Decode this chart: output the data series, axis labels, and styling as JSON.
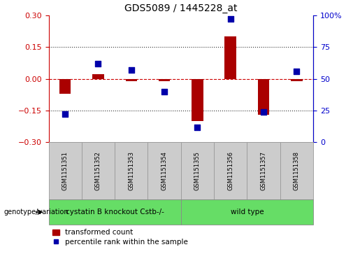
{
  "title": "GDS5089 / 1445228_at",
  "samples": [
    "GSM1151351",
    "GSM1151352",
    "GSM1151353",
    "GSM1151354",
    "GSM1151355",
    "GSM1151356",
    "GSM1151357",
    "GSM1151358"
  ],
  "transformed_count": [
    -0.07,
    0.02,
    -0.01,
    -0.01,
    -0.2,
    0.2,
    -0.17,
    -0.01
  ],
  "percentile_rank": [
    22,
    62,
    57,
    40,
    12,
    97,
    24,
    56
  ],
  "ylim_left": [
    -0.3,
    0.3
  ],
  "ylim_right": [
    0,
    100
  ],
  "yticks_left": [
    -0.3,
    -0.15,
    0,
    0.15,
    0.3
  ],
  "yticks_right": [
    0,
    25,
    50,
    75,
    100
  ],
  "hline_dotted": [
    -0.15,
    0.15
  ],
  "hline_dashed": 0,
  "groups": [
    {
      "label": "cystatin B knockout Cstb-/-",
      "start": 0,
      "end": 4,
      "color": "#66DD66"
    },
    {
      "label": "wild type",
      "start": 4,
      "end": 8,
      "color": "#66DD66"
    }
  ],
  "bar_color": "#AA0000",
  "dot_color": "#0000AA",
  "genotype_label": "genotype/variation",
  "legend_bar_label": "transformed count",
  "legend_dot_label": "percentile rank within the sample",
  "bar_width": 0.35,
  "dot_size": 40,
  "background_color": "#ffffff",
  "plot_bg_color": "#ffffff",
  "gray_bg": "#cccccc",
  "zero_line_color": "#cc0000",
  "dotted_line_color": "#333333",
  "left_color": "#cc0000",
  "right_color": "#0000cc"
}
